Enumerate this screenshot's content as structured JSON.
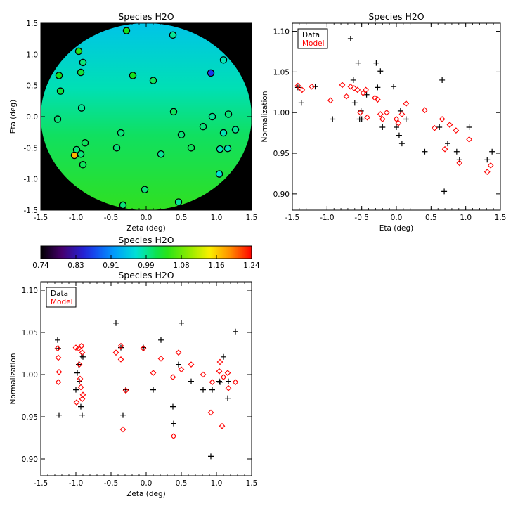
{
  "chart_data": [
    {
      "type": "scatter",
      "title": "Species H2O",
      "xlabel": "Zeta (deg)",
      "ylabel": "Eta (deg)",
      "xlim": [
        -1.5,
        1.5
      ],
      "ylim": [
        -1.5,
        1.5
      ],
      "xticks": [
        "-1.5",
        "-1.0",
        "-0.5",
        "0.0",
        "0.5",
        "1.0",
        "1.5"
      ],
      "yticks": [
        "-1.5",
        "-1.0",
        "-0.5",
        "0.0",
        "0.5",
        "1.0",
        "1.5"
      ],
      "background": "#000000",
      "note": "color-mapped normalization field over circular field of view",
      "points": [
        {
          "x": -0.28,
          "y": 1.38,
          "v": 1.03
        },
        {
          "x": 0.38,
          "y": 1.31,
          "v": 0.99
        },
        {
          "x": -0.96,
          "y": 1.05,
          "v": 1.04
        },
        {
          "x": -0.9,
          "y": 0.87,
          "v": 1.0
        },
        {
          "x": 1.1,
          "y": 0.91,
          "v": 0.98
        },
        {
          "x": 0.92,
          "y": 0.7,
          "v": 0.86
        },
        {
          "x": -0.93,
          "y": 0.71,
          "v": 1.02
        },
        {
          "x": -1.24,
          "y": 0.66,
          "v": 1.03
        },
        {
          "x": -0.19,
          "y": 0.66,
          "v": 1.03
        },
        {
          "x": 0.1,
          "y": 0.58,
          "v": 1.01
        },
        {
          "x": -1.22,
          "y": 0.41,
          "v": 1.02
        },
        {
          "x": -0.92,
          "y": 0.14,
          "v": 0.99
        },
        {
          "x": 0.39,
          "y": 0.08,
          "v": 1.01
        },
        {
          "x": 1.17,
          "y": 0.04,
          "v": 1.0
        },
        {
          "x": 0.94,
          "y": 0.0,
          "v": 0.99
        },
        {
          "x": -1.26,
          "y": -0.04,
          "v": 1.0
        },
        {
          "x": 0.81,
          "y": -0.16,
          "v": 1.0
        },
        {
          "x": 1.27,
          "y": -0.21,
          "v": 0.99
        },
        {
          "x": -0.36,
          "y": -0.26,
          "v": 1.0
        },
        {
          "x": 1.1,
          "y": -0.26,
          "v": 0.98
        },
        {
          "x": 0.5,
          "y": -0.29,
          "v": 1.0
        },
        {
          "x": -0.87,
          "y": -0.42,
          "v": 1.01
        },
        {
          "x": -0.42,
          "y": -0.5,
          "v": 1.0
        },
        {
          "x": 0.64,
          "y": -0.5,
          "v": 1.01
        },
        {
          "x": 1.16,
          "y": -0.51,
          "v": 0.98
        },
        {
          "x": 1.05,
          "y": -0.52,
          "v": 0.98
        },
        {
          "x": -0.99,
          "y": -0.53,
          "v": 1.0
        },
        {
          "x": -0.93,
          "y": -0.6,
          "v": 1.0
        },
        {
          "x": 0.21,
          "y": -0.6,
          "v": 0.99
        },
        {
          "x": -1.02,
          "y": -0.62,
          "v": 1.17
        },
        {
          "x": -0.9,
          "y": -0.77,
          "v": 1.01
        },
        {
          "x": 1.04,
          "y": -0.92,
          "v": 0.97
        },
        {
          "x": -0.02,
          "y": -1.17,
          "v": 1.0
        },
        {
          "x": 0.46,
          "y": -1.37,
          "v": 0.99
        },
        {
          "x": -0.33,
          "y": -1.42,
          "v": 1.0
        }
      ]
    },
    {
      "type": "scatter",
      "title": "Species H2O",
      "xlabel": "Eta (deg)",
      "ylabel": "Normalization",
      "xlim": [
        -1.5,
        1.5
      ],
      "ylim": [
        0.88,
        1.11
      ],
      "xticks": [
        "-1.5",
        "-1.0",
        "-0.5",
        "0.0",
        "0.5",
        "1.0",
        "1.5"
      ],
      "yticks": [
        "0.90",
        "0.95",
        "1.00",
        "1.05",
        "1.10"
      ],
      "legend": {
        "position": "top-left",
        "entries": [
          "Data",
          "Model"
        ]
      },
      "series": [
        {
          "name": "Data",
          "marker": "plus",
          "color": "#000000",
          "points": [
            [
              -1.42,
              1.031
            ],
            [
              -1.37,
              1.012
            ],
            [
              -1.17,
              1.032
            ],
            [
              -0.92,
              0.992
            ],
            [
              -0.66,
              1.091
            ],
            [
              -0.62,
              1.04
            ],
            [
              -0.6,
              1.012
            ],
            [
              -0.55,
              1.061
            ],
            [
              -0.53,
              0.992
            ],
            [
              -0.51,
              1.002
            ],
            [
              -0.5,
              0.992
            ],
            [
              -0.43,
              1.022
            ],
            [
              -0.29,
              1.061
            ],
            [
              -0.27,
              1.031
            ],
            [
              -0.23,
              1.051
            ],
            [
              -0.2,
              0.982
            ],
            [
              -0.04,
              1.032
            ],
            [
              0.0,
              0.982
            ],
            [
              0.04,
              0.972
            ],
            [
              0.06,
              1.002
            ],
            [
              0.08,
              0.962
            ],
            [
              0.14,
              0.992
            ],
            [
              0.41,
              0.952
            ],
            [
              0.62,
              0.982
            ],
            [
              0.66,
              1.04
            ],
            [
              0.69,
              0.903
            ],
            [
              0.74,
              0.962
            ],
            [
              0.87,
              0.952
            ],
            [
              0.91,
              0.942
            ],
            [
              1.05,
              0.982
            ],
            [
              1.31,
              0.942
            ],
            [
              1.38,
              0.952
            ]
          ]
        },
        {
          "name": "Model",
          "marker": "diamond",
          "color": "#ff0000",
          "points": [
            [
              -1.42,
              1.033
            ],
            [
              -1.36,
              1.028
            ],
            [
              -1.22,
              1.032
            ],
            [
              -0.95,
              1.015
            ],
            [
              -0.78,
              1.034
            ],
            [
              -0.72,
              1.02
            ],
            [
              -0.66,
              1.032
            ],
            [
              -0.61,
              1.03
            ],
            [
              -0.56,
              1.028
            ],
            [
              -0.52,
              1.0
            ],
            [
              -0.48,
              1.024
            ],
            [
              -0.44,
              1.028
            ],
            [
              -0.42,
              0.994
            ],
            [
              -0.31,
              1.018
            ],
            [
              -0.27,
              1.016
            ],
            [
              -0.23,
              0.998
            ],
            [
              -0.2,
              0.992
            ],
            [
              -0.14,
              1.0
            ],
            [
              0.0,
              0.992
            ],
            [
              0.03,
              0.987
            ],
            [
              0.08,
              0.998
            ],
            [
              0.14,
              1.011
            ],
            [
              0.41,
              1.003
            ],
            [
              0.55,
              0.981
            ],
            [
              0.66,
              0.992
            ],
            [
              0.7,
              0.955
            ],
            [
              0.77,
              0.985
            ],
            [
              0.86,
              0.978
            ],
            [
              0.91,
              0.938
            ],
            [
              1.05,
              0.967
            ],
            [
              1.31,
              0.927
            ],
            [
              1.36,
              0.935
            ]
          ]
        }
      ]
    },
    {
      "type": "colorbar",
      "title": "Species H2O",
      "range": [
        0.74,
        1.24
      ],
      "ticks": [
        "0.74",
        "0.83",
        "0.91",
        "0.99",
        "1.08",
        "1.16",
        "1.24"
      ]
    },
    {
      "type": "scatter",
      "title": "Species H2O",
      "xlabel": "Zeta (deg)",
      "ylabel": "Normalization",
      "xlim": [
        -1.5,
        1.5
      ],
      "ylim": [
        0.88,
        1.11
      ],
      "xticks": [
        "-1.5",
        "-1.0",
        "-0.5",
        "0.0",
        "0.5",
        "1.0",
        "1.5"
      ],
      "yticks": [
        "0.90",
        "0.95",
        "1.00",
        "1.05",
        "1.10"
      ],
      "legend": {
        "position": "top-left",
        "entries": [
          "Data",
          "Model"
        ]
      },
      "series": [
        {
          "name": "Data",
          "marker": "plus",
          "color": "#000000",
          "points": [
            [
              -1.26,
              1.041
            ],
            [
              -1.25,
              1.031
            ],
            [
              -1.24,
              0.952
            ],
            [
              -1.0,
              0.982
            ],
            [
              -0.98,
              1.002
            ],
            [
              -0.96,
              1.012
            ],
            [
              -0.95,
              0.992
            ],
            [
              -0.93,
              0.962
            ],
            [
              -0.92,
              1.022
            ],
            [
              -0.91,
              0.952
            ],
            [
              -0.9,
              1.021
            ],
            [
              -0.43,
              1.061
            ],
            [
              -0.36,
              1.032
            ],
            [
              -0.33,
              0.952
            ],
            [
              -0.29,
              0.982
            ],
            [
              -0.04,
              1.032
            ],
            [
              0.1,
              0.982
            ],
            [
              0.21,
              1.041
            ],
            [
              0.38,
              0.962
            ],
            [
              0.39,
              0.942
            ],
            [
              0.46,
              1.012
            ],
            [
              0.5,
              1.061
            ],
            [
              0.64,
              0.992
            ],
            [
              0.81,
              0.982
            ],
            [
              0.92,
              0.903
            ],
            [
              0.94,
              0.982
            ],
            [
              1.04,
              0.992
            ],
            [
              1.05,
              0.991
            ],
            [
              1.1,
              1.021
            ],
            [
              1.16,
              0.972
            ],
            [
              1.17,
              0.992
            ],
            [
              1.27,
              1.051
            ]
          ]
        },
        {
          "name": "Model",
          "marker": "diamond",
          "color": "#ff0000",
          "points": [
            [
              -1.26,
              1.031
            ],
            [
              -1.25,
              1.02
            ],
            [
              -1.24,
              1.003
            ],
            [
              -1.25,
              0.991
            ],
            [
              -1.0,
              1.032
            ],
            [
              -0.99,
              0.967
            ],
            [
              -0.96,
              1.031
            ],
            [
              -0.95,
              1.012
            ],
            [
              -0.94,
              0.995
            ],
            [
              -0.93,
              0.985
            ],
            [
              -0.92,
              1.034
            ],
            [
              -0.91,
              1.026
            ],
            [
              -0.9,
              0.976
            ],
            [
              -0.91,
              0.971
            ],
            [
              -0.43,
              1.026
            ],
            [
              -0.36,
              1.034
            ],
            [
              -0.36,
              1.018
            ],
            [
              -0.33,
              0.935
            ],
            [
              -0.29,
              0.981
            ],
            [
              -0.04,
              1.031
            ],
            [
              0.1,
              1.002
            ],
            [
              0.21,
              1.019
            ],
            [
              0.38,
              0.997
            ],
            [
              0.39,
              0.927
            ],
            [
              0.46,
              1.026
            ],
            [
              0.5,
              1.006
            ],
            [
              0.64,
              1.012
            ],
            [
              0.81,
              1.0
            ],
            [
              0.92,
              0.955
            ],
            [
              0.94,
              0.991
            ],
            [
              1.04,
              1.004
            ],
            [
              1.05,
              1.015
            ],
            [
              1.08,
              0.939
            ],
            [
              1.1,
              0.997
            ],
            [
              1.16,
              1.002
            ],
            [
              1.17,
              0.984
            ],
            [
              1.27,
              0.991
            ]
          ]
        }
      ]
    }
  ]
}
